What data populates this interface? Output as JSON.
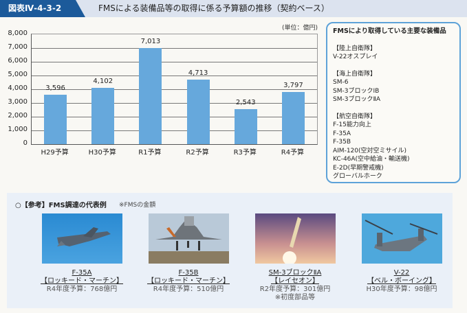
{
  "header": {
    "figure_label": "図表Ⅳ-4-3-2",
    "title": "FMSによる装備品等の取得に係る予算額の推移（契約ベース）"
  },
  "unit": "(単位：億円)",
  "chart_data": {
    "type": "bar",
    "title": "FMSによる装備品等の取得に係る予算額の推移（契約ベース）",
    "categories": [
      "H29予算",
      "H30予算",
      "R1予算",
      "R2予算",
      "R3予算",
      "R4予算"
    ],
    "values": [
      3596,
      4102,
      7013,
      4713,
      2543,
      3797
    ],
    "value_labels": [
      "3,596",
      "4,102",
      "7,013",
      "4,713",
      "2,543",
      "3,797"
    ],
    "xlabel": "",
    "ylabel": "単位：億円",
    "ylim": [
      0,
      8000
    ],
    "yticks": [
      "0",
      "1,000",
      "2,000",
      "3,000",
      "4,000",
      "5,000",
      "6,000",
      "7,000",
      "8,000"
    ],
    "grid": true,
    "color": "#66a8dc"
  },
  "sidebox": {
    "title": "FMSにより取得している主要な装備品",
    "groups": [
      {
        "heading": "【陸上自衛隊】",
        "items": [
          "V-22オスプレイ"
        ]
      },
      {
        "heading": "【海上自衛隊】",
        "items": [
          "SM-6",
          "SM-3ブロックⅠB",
          "SM-3ブロックⅡA"
        ]
      },
      {
        "heading": "【航空自衛隊】",
        "items": [
          "F-15能力向上",
          "F-35A",
          "F-35B",
          "AIM-120(空対空ミサイル)",
          "KC-46A(空中給油・輸送機)",
          "E-2D(早期警戒機)",
          "グローバルホーク"
        ]
      }
    ]
  },
  "reference": {
    "title": "○【参考】FMS調達の代表例",
    "note": "※FMSの金額",
    "items": [
      {
        "name": "F-35A",
        "maker": "【ロッキード・マーチン】",
        "budget": "R4年度予算：768億円",
        "note": ""
      },
      {
        "name": "F-35B",
        "maker": "【ロッキード・マーチン】",
        "budget": "R4年度予算：510億円",
        "note": ""
      },
      {
        "name": "SM-3ブロックⅡA",
        "maker": "【レイセオン】",
        "budget": "R2年度予算：301億円",
        "note": "※初度部品等"
      },
      {
        "name": "V-22",
        "maker": "【ベル・ボーイング】",
        "budget": "H30年度予算：98億円",
        "note": ""
      }
    ]
  }
}
